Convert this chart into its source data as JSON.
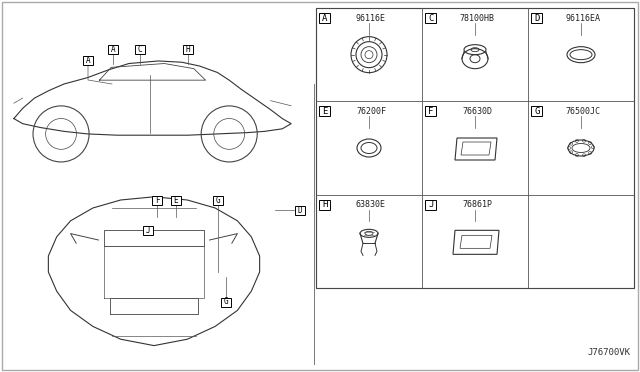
{
  "bg_color": "#ffffff",
  "border_color": "#000000",
  "diagram_title": "J76700VK",
  "grid_cells": [
    {
      "row": 0,
      "col": 0,
      "label": "A",
      "part": "96116E",
      "shape": "ring_detailed"
    },
    {
      "row": 0,
      "col": 1,
      "label": "C",
      "part": "78100HB",
      "shape": "plug_3d"
    },
    {
      "row": 0,
      "col": 2,
      "label": "D",
      "part": "96116EA",
      "shape": "oval_flat"
    },
    {
      "row": 1,
      "col": 0,
      "label": "E",
      "part": "76200F",
      "shape": "oval_ring"
    },
    {
      "row": 1,
      "col": 1,
      "label": "F",
      "part": "76630D",
      "shape": "rectangle_pad"
    },
    {
      "row": 1,
      "col": 2,
      "label": "G",
      "part": "76500JC",
      "shape": "oval_bumpy"
    },
    {
      "row": 2,
      "col": 0,
      "label": "H",
      "part": "63830E",
      "shape": "clip_fastener"
    },
    {
      "row": 2,
      "col": 1,
      "label": "J",
      "part": "76861P",
      "shape": "rectangle_pad2"
    },
    {
      "row": 2,
      "col": 2,
      "label": "",
      "part": "",
      "shape": "empty"
    }
  ]
}
